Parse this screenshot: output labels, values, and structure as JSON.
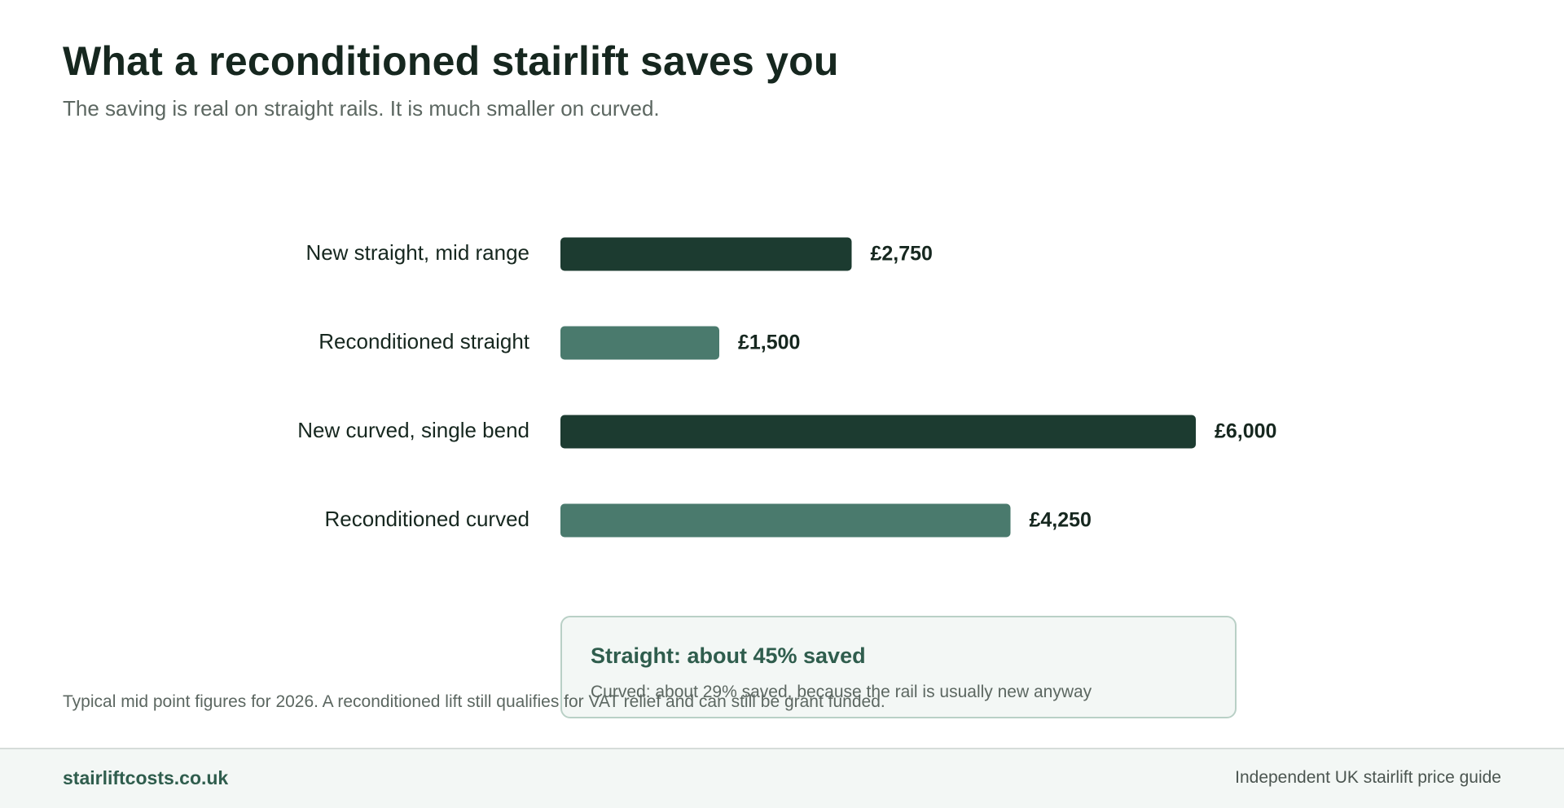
{
  "header": {
    "title": "What a reconditioned stairlift saves you",
    "subtitle": "The saving is real on straight rails. It is much smaller on curved."
  },
  "chart_data": {
    "type": "bar",
    "orientation": "horizontal",
    "categories": [
      "New straight, mid range",
      "Reconditioned straight",
      "New curved, single bend",
      "Reconditioned curved"
    ],
    "values": [
      2750,
      1500,
      6000,
      4250
    ],
    "value_labels": [
      "£2,750",
      "£1,500",
      "£6,000",
      "£4,250"
    ],
    "bar_colors": [
      "#1c3b30",
      "#4a7a6d",
      "#1c3b30",
      "#4a7a6d"
    ],
    "xlim": [
      0,
      6000
    ],
    "grid": false,
    "title": "",
    "xlabel": "",
    "ylabel": ""
  },
  "callout": {
    "headline": "Straight: about 45% saved",
    "detail": "Curved: about 29% saved, because the rail is usually new anyway"
  },
  "footnote": "Typical mid point figures for 2026. A reconditioned lift still qualifies for VAT relief and can still be grant funded.",
  "footer": {
    "brand": "stairliftcosts.co.uk",
    "tagline": "Independent UK stairlift price guide"
  },
  "colors": {
    "accent_dark": "#1c3b30",
    "accent_light": "#4a7a6d",
    "brand": "#2f5d4d"
  }
}
